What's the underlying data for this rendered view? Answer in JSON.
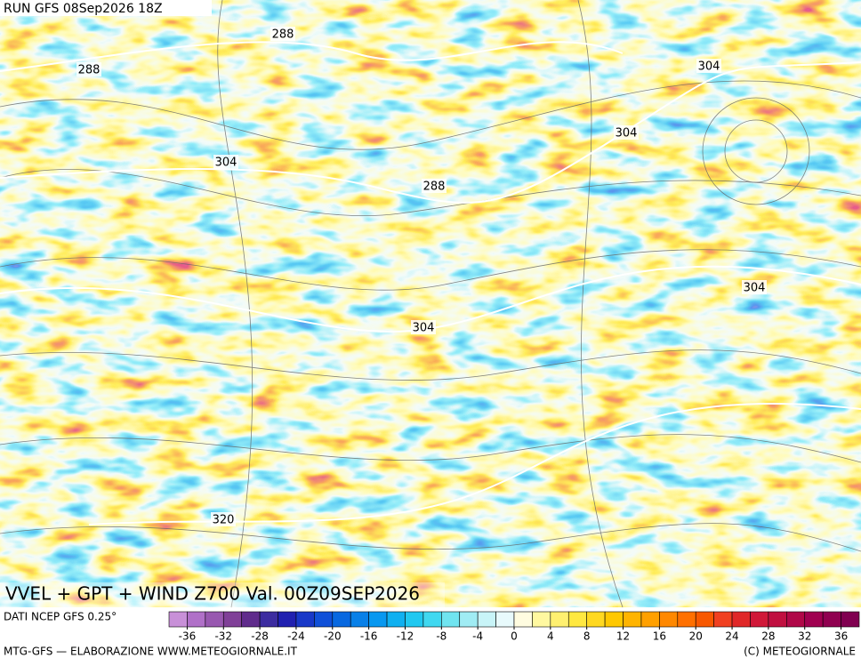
{
  "header": {
    "run": "RUN GFS 08Sep2026 18Z"
  },
  "contour_labels": [
    "288",
    "288",
    "304",
    "288",
    "304",
    "304",
    "304",
    "304",
    "320"
  ],
  "map_title": "VVEL + GPT + WIND Z700 Val. 00Z09SEP2026",
  "colorbar": {
    "source": "DATI NCEP GFS 0.25°",
    "lim": [
      -38,
      38
    ],
    "ticks": [
      -36,
      -32,
      -28,
      -24,
      -20,
      -16,
      -12,
      -8,
      -4,
      0,
      4,
      8,
      12,
      16,
      20,
      24,
      28,
      32,
      36
    ],
    "colors": [
      "#c890d8",
      "#b070c8",
      "#9858b0",
      "#804098",
      "#602c8c",
      "#3c2ca0",
      "#2020b0",
      "#1838c8",
      "#1050d8",
      "#0868e0",
      "#0880e8",
      "#0898f0",
      "#10b0f0",
      "#20c8f0",
      "#40d8f0",
      "#70e4f0",
      "#a0ecf4",
      "#c8f4f8",
      "#e8fafc",
      "#fffce0",
      "#fff8a0",
      "#fff070",
      "#ffe840",
      "#ffd820",
      "#ffc800",
      "#ffb400",
      "#ffa000",
      "#ff8800",
      "#ff7000",
      "#f85800",
      "#f04020",
      "#e02828",
      "#d01838",
      "#c01040",
      "#b00848",
      "#a00050",
      "#900050",
      "#800050"
    ]
  },
  "footer": {
    "left": "MTG-GFS — ELABORAZIONE WWW.METEOGIORNALE.IT",
    "right": "(C) METEOGIORNALE"
  }
}
